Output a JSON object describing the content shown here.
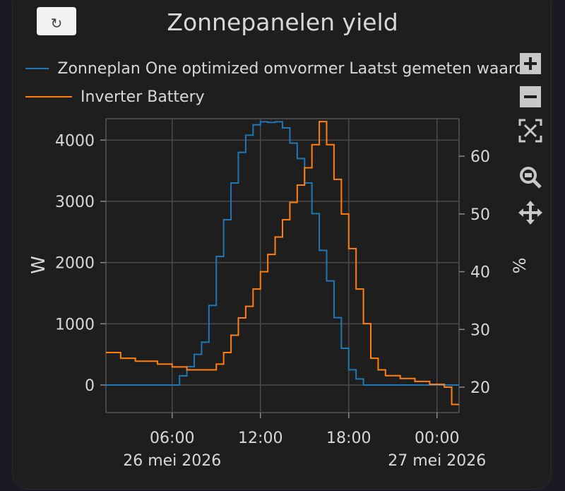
{
  "reset_button": {
    "icon": "reset-icon",
    "glyph": "↻"
  },
  "toolbar": {
    "icons": [
      "zoom-in-icon",
      "zoom-out-icon",
      "autoscale-icon",
      "zoom-icon",
      "pan-icon"
    ]
  },
  "chart_data": {
    "type": "line",
    "title": "Zonnepanelen yield",
    "ylabel_left": "W",
    "ylabel_right": "%",
    "x_ticks": [
      "06:00",
      "12:00",
      "18:00",
      "00:00"
    ],
    "x_date_labels": [
      "26 mei 2026",
      "27 mei 2026"
    ],
    "y_left_ticks": [
      0,
      1000,
      2000,
      3000,
      4000
    ],
    "y_right_ticks": [
      20,
      30,
      40,
      50,
      60
    ],
    "ylim_left": [
      -450,
      4350
    ],
    "ylim_right": [
      15.6,
      66.5
    ],
    "xlim": [
      "2026-05-26T01:30",
      "2026-05-27T01:30"
    ],
    "grid": true,
    "legend_position": "top-left",
    "series": [
      {
        "name": "Zonneplan One optimized omvormer Laatst gemeten waarde",
        "axis": "left",
        "color": "#1f77b4",
        "step": true,
        "x": [
          "01:30",
          "05:50",
          "06:30",
          "07:00",
          "07:30",
          "08:00",
          "08:30",
          "09:00",
          "09:30",
          "10:00",
          "10:30",
          "11:00",
          "11:30",
          "12:00",
          "12:30",
          "13:00",
          "13:30",
          "14:00",
          "14:30",
          "15:00",
          "15:30",
          "16:00",
          "16:30",
          "17:00",
          "17:30",
          "18:00",
          "18:30",
          "19:00",
          "19:30",
          "20:00",
          "20:30",
          "21:00",
          "21:30",
          "22:00",
          "22:30",
          "23:00",
          "23:30",
          "00:00",
          "00:30",
          "01:00",
          "01:30"
        ],
        "values": [
          0,
          0,
          150,
          300,
          500,
          700,
          1300,
          2100,
          2700,
          3300,
          3800,
          4080,
          4250,
          4300,
          4290,
          4300,
          4200,
          3950,
          3700,
          3300,
          2800,
          2200,
          1700,
          1100,
          600,
          250,
          100,
          0,
          0,
          0,
          0,
          0,
          0,
          0,
          0,
          0,
          0,
          0,
          0,
          0,
          0
        ]
      },
      {
        "name": "Inverter Battery",
        "axis": "right",
        "color": "#ff7f0e",
        "step": true,
        "x": [
          "01:30",
          "02:30",
          "03:30",
          "05:00",
          "06:00",
          "07:00",
          "08:00",
          "09:00",
          "09:30",
          "10:00",
          "10:30",
          "11:00",
          "11:30",
          "12:00",
          "12:30",
          "13:00",
          "13:30",
          "14:00",
          "14:30",
          "15:00",
          "15:30",
          "16:00",
          "16:30",
          "17:00",
          "17:30",
          "18:00",
          "18:30",
          "19:00",
          "19:30",
          "20:00",
          "20:30",
          "21:00",
          "21:30",
          "22:00",
          "22:30",
          "23:00",
          "23:30",
          "00:00",
          "00:30",
          "01:00",
          "01:30"
        ],
        "values": [
          26,
          25,
          24.5,
          24,
          23.5,
          23,
          23,
          24,
          26,
          29,
          32,
          34,
          37,
          40,
          43,
          46,
          49,
          52,
          55,
          58,
          62,
          66,
          62,
          56,
          50,
          44,
          37,
          31,
          25,
          23,
          22,
          22,
          21.5,
          21.5,
          21,
          21,
          20.5,
          20.5,
          20,
          17,
          17
        ]
      }
    ]
  }
}
